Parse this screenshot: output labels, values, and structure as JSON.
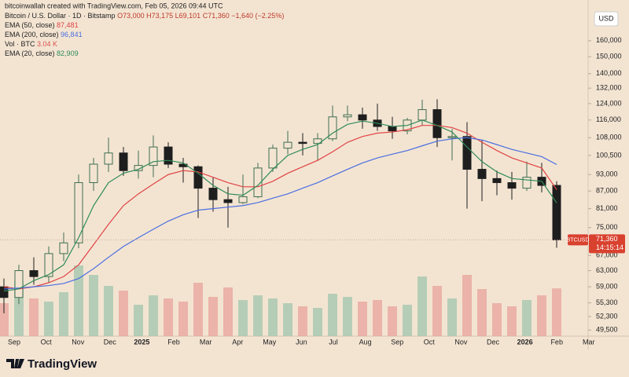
{
  "header": {
    "credit": "bitcoinwallah created with TradingView.com, Feb 05, 2026 09:44 UTC",
    "symbol": "Bitcoin / U.S. Dollar · 1D · Bitstamp",
    "ohlc": [
      "O73,000",
      "H73,175",
      "L69,101",
      "C71,360"
    ],
    "change": "−1,640 (−2.25%)"
  },
  "currency": "USD",
  "footer": {
    "brand": "TradingView"
  },
  "chart_data": {
    "type": "candlestick",
    "log_scale": true,
    "symbol_tag": "BTCUSD",
    "last_price": {
      "value": 71360,
      "label": "71,360"
    },
    "countdown": "14:15:14",
    "up_color": "#3f6e50",
    "down_color": "#1e1e1e",
    "ylim": [
      48300,
      182800
    ],
    "yticks": [
      {
        "value": 160000,
        "label": "160,000"
      },
      {
        "value": 150000,
        "label": "150,000"
      },
      {
        "value": 140000,
        "label": "140,000"
      },
      {
        "value": 132000,
        "label": "132,000"
      },
      {
        "value": 124000,
        "label": "124,000"
      },
      {
        "value": 116000,
        "label": "116,000"
      },
      {
        "value": 108000,
        "label": "108,000"
      },
      {
        "value": 100500,
        "label": "100,500"
      },
      {
        "value": 93000,
        "label": "93,000"
      },
      {
        "value": 87000,
        "label": "87,000"
      },
      {
        "value": 81000,
        "label": "81,000"
      },
      {
        "value": 75000,
        "label": "75,000"
      },
      {
        "value": 67000,
        "label": "67,000"
      },
      {
        "value": 63000,
        "label": "63,000"
      },
      {
        "value": 59000,
        "label": "59,000"
      },
      {
        "value": 55300,
        "label": "55,300"
      },
      {
        "value": 52300,
        "label": "52,300"
      },
      {
        "value": 49500,
        "label": "49,500"
      }
    ],
    "xticks": [
      "Sep",
      "Oct",
      "Nov",
      "Dec",
      "2025",
      "Feb",
      "Mar",
      "Apr",
      "May",
      "Jun",
      "Jul",
      "Aug",
      "Sep",
      "Oct",
      "Nov",
      "Dec",
      "2026",
      "Feb",
      "Mar"
    ],
    "open": [
      59000,
      56500,
      63000,
      61500,
      67500,
      70500,
      90000,
      97000,
      101500,
      94500,
      96500,
      104000,
      97000,
      96000,
      88000,
      84000,
      83000,
      85000,
      95500,
      103500,
      106000,
      105500,
      107500,
      117500,
      118500,
      116000,
      113000,
      111000,
      116000,
      121000,
      108000,
      108500,
      95000,
      91500,
      90000,
      88000,
      92000,
      89000
    ],
    "high": [
      61000,
      64500,
      66500,
      69500,
      73500,
      93000,
      99500,
      108000,
      104000,
      102500,
      109000,
      106000,
      99500,
      96500,
      92000,
      88500,
      93000,
      97500,
      105000,
      111000,
      110000,
      110000,
      123000,
      123000,
      122000,
      124000,
      117500,
      117000,
      126000,
      126200,
      112000,
      115000,
      107000,
      94500,
      94000,
      98000,
      97500,
      90500
    ],
    "low": [
      53000,
      55000,
      59500,
      60000,
      65500,
      69000,
      87000,
      94000,
      92500,
      91500,
      92000,
      95500,
      90000,
      78000,
      80000,
      75000,
      82500,
      84500,
      94000,
      101000,
      100500,
      98500,
      106500,
      115500,
      112000,
      111000,
      107500,
      109500,
      113500,
      104000,
      98500,
      81000,
      83500,
      85500,
      84000,
      87000,
      86500,
      69101
    ],
    "close": [
      56500,
      63000,
      61500,
      67500,
      70500,
      90000,
      97000,
      101500,
      94500,
      96500,
      104000,
      97000,
      96000,
      88000,
      84000,
      83000,
      85000,
      95500,
      103500,
      106000,
      105500,
      107500,
      117500,
      118500,
      116000,
      113000,
      111000,
      116000,
      121000,
      108000,
      108500,
      95000,
      91500,
      90000,
      88000,
      92000,
      89000,
      71360
    ],
    "volume": {
      "name": "Vol · BTC",
      "value_label": "3.04 K",
      "up_color": "#a9c9b2",
      "down_color": "#e9aaa2",
      "values": [
        2.1,
        3.5,
        2.4,
        2.2,
        2.8,
        4.5,
        3.9,
        3.2,
        2.9,
        2.0,
        2.6,
        2.4,
        2.2,
        3.4,
        2.5,
        3.1,
        2.3,
        2.6,
        2.4,
        2.1,
        1.9,
        1.8,
        2.7,
        2.5,
        2.2,
        2.3,
        1.9,
        2.0,
        3.8,
        3.2,
        2.4,
        3.9,
        3.0,
        2.1,
        1.9,
        2.3,
        2.6,
        3.04
      ]
    },
    "series": [
      {
        "name": "EMA (50, close)",
        "color": "#e04343",
        "value_label": "87,481",
        "values": [
          59000,
          58500,
          59000,
          60000,
          61500,
          64500,
          70000,
          76000,
          82000,
          86000,
          89500,
          93000,
          94500,
          94000,
          92000,
          90000,
          88500,
          88500,
          90500,
          93500,
          96000,
          98500,
          102000,
          106000,
          108500,
          110000,
          110500,
          111500,
          113500,
          113500,
          112500,
          110000,
          106000,
          102500,
          99500,
          97500,
          95500,
          87481
        ]
      },
      {
        "name": "EMA (200, close)",
        "color": "#4a6ee0",
        "value_label": "96,841",
        "values": [
          58500,
          58700,
          59000,
          59300,
          59800,
          61000,
          63500,
          66500,
          69500,
          72000,
          74500,
          77000,
          79000,
          80500,
          81000,
          81500,
          82000,
          83000,
          84500,
          86000,
          88000,
          90000,
          92500,
          95000,
          97500,
          99500,
          101000,
          102500,
          104500,
          106500,
          107500,
          108000,
          107000,
          105000,
          103000,
          101500,
          100000,
          96841
        ]
      },
      {
        "name": "EMA (20, close)",
        "color": "#2e8b57",
        "value_label": "82,909",
        "values": [
          58000,
          58500,
          60500,
          62000,
          64500,
          72000,
          82000,
          90000,
          93500,
          95000,
          98000,
          98500,
          97500,
          93500,
          89000,
          86000,
          85500,
          89000,
          95000,
          100500,
          103000,
          105000,
          110000,
          114000,
          115500,
          114500,
          113000,
          113500,
          116000,
          113500,
          110500,
          104000,
          98000,
          94000,
          91500,
          91000,
          90500,
          82909
        ]
      }
    ]
  }
}
